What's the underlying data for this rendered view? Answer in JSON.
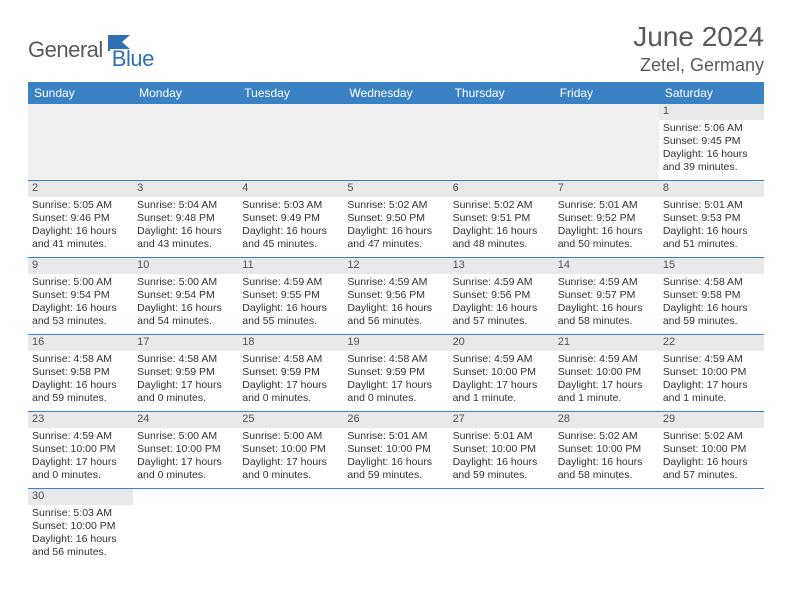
{
  "brand": {
    "part1": "General",
    "part2": "Blue"
  },
  "title": "June 2024",
  "location": "Zetel, Germany",
  "colors": {
    "header_bg": "#3b82c4",
    "header_text": "#ffffff",
    "brand_gray": "#5a5a5a",
    "brand_blue": "#2f6fb3",
    "cell_border": "#3b82c4",
    "daynum_bg": "#e9e9e9",
    "blank_bg": "#f0f0f0"
  },
  "weekdays": [
    "Sunday",
    "Monday",
    "Tuesday",
    "Wednesday",
    "Thursday",
    "Friday",
    "Saturday"
  ],
  "weeks": [
    [
      {
        "blank": true
      },
      {
        "blank": true
      },
      {
        "blank": true
      },
      {
        "blank": true
      },
      {
        "blank": true
      },
      {
        "blank": true
      },
      {
        "day": "1",
        "sunrise": "Sunrise: 5:06 AM",
        "sunset": "Sunset: 9:45 PM",
        "day1": "Daylight: 16 hours",
        "day2": "and 39 minutes."
      }
    ],
    [
      {
        "day": "2",
        "sunrise": "Sunrise: 5:05 AM",
        "sunset": "Sunset: 9:46 PM",
        "day1": "Daylight: 16 hours",
        "day2": "and 41 minutes."
      },
      {
        "day": "3",
        "sunrise": "Sunrise: 5:04 AM",
        "sunset": "Sunset: 9:48 PM",
        "day1": "Daylight: 16 hours",
        "day2": "and 43 minutes."
      },
      {
        "day": "4",
        "sunrise": "Sunrise: 5:03 AM",
        "sunset": "Sunset: 9:49 PM",
        "day1": "Daylight: 16 hours",
        "day2": "and 45 minutes."
      },
      {
        "day": "5",
        "sunrise": "Sunrise: 5:02 AM",
        "sunset": "Sunset: 9:50 PM",
        "day1": "Daylight: 16 hours",
        "day2": "and 47 minutes."
      },
      {
        "day": "6",
        "sunrise": "Sunrise: 5:02 AM",
        "sunset": "Sunset: 9:51 PM",
        "day1": "Daylight: 16 hours",
        "day2": "and 48 minutes."
      },
      {
        "day": "7",
        "sunrise": "Sunrise: 5:01 AM",
        "sunset": "Sunset: 9:52 PM",
        "day1": "Daylight: 16 hours",
        "day2": "and 50 minutes."
      },
      {
        "day": "8",
        "sunrise": "Sunrise: 5:01 AM",
        "sunset": "Sunset: 9:53 PM",
        "day1": "Daylight: 16 hours",
        "day2": "and 51 minutes."
      }
    ],
    [
      {
        "day": "9",
        "sunrise": "Sunrise: 5:00 AM",
        "sunset": "Sunset: 9:54 PM",
        "day1": "Daylight: 16 hours",
        "day2": "and 53 minutes."
      },
      {
        "day": "10",
        "sunrise": "Sunrise: 5:00 AM",
        "sunset": "Sunset: 9:54 PM",
        "day1": "Daylight: 16 hours",
        "day2": "and 54 minutes."
      },
      {
        "day": "11",
        "sunrise": "Sunrise: 4:59 AM",
        "sunset": "Sunset: 9:55 PM",
        "day1": "Daylight: 16 hours",
        "day2": "and 55 minutes."
      },
      {
        "day": "12",
        "sunrise": "Sunrise: 4:59 AM",
        "sunset": "Sunset: 9:56 PM",
        "day1": "Daylight: 16 hours",
        "day2": "and 56 minutes."
      },
      {
        "day": "13",
        "sunrise": "Sunrise: 4:59 AM",
        "sunset": "Sunset: 9:56 PM",
        "day1": "Daylight: 16 hours",
        "day2": "and 57 minutes."
      },
      {
        "day": "14",
        "sunrise": "Sunrise: 4:59 AM",
        "sunset": "Sunset: 9:57 PM",
        "day1": "Daylight: 16 hours",
        "day2": "and 58 minutes."
      },
      {
        "day": "15",
        "sunrise": "Sunrise: 4:58 AM",
        "sunset": "Sunset: 9:58 PM",
        "day1": "Daylight: 16 hours",
        "day2": "and 59 minutes."
      }
    ],
    [
      {
        "day": "16",
        "sunrise": "Sunrise: 4:58 AM",
        "sunset": "Sunset: 9:58 PM",
        "day1": "Daylight: 16 hours",
        "day2": "and 59 minutes."
      },
      {
        "day": "17",
        "sunrise": "Sunrise: 4:58 AM",
        "sunset": "Sunset: 9:59 PM",
        "day1": "Daylight: 17 hours",
        "day2": "and 0 minutes."
      },
      {
        "day": "18",
        "sunrise": "Sunrise: 4:58 AM",
        "sunset": "Sunset: 9:59 PM",
        "day1": "Daylight: 17 hours",
        "day2": "and 0 minutes."
      },
      {
        "day": "19",
        "sunrise": "Sunrise: 4:58 AM",
        "sunset": "Sunset: 9:59 PM",
        "day1": "Daylight: 17 hours",
        "day2": "and 0 minutes."
      },
      {
        "day": "20",
        "sunrise": "Sunrise: 4:59 AM",
        "sunset": "Sunset: 10:00 PM",
        "day1": "Daylight: 17 hours",
        "day2": "and 1 minute."
      },
      {
        "day": "21",
        "sunrise": "Sunrise: 4:59 AM",
        "sunset": "Sunset: 10:00 PM",
        "day1": "Daylight: 17 hours",
        "day2": "and 1 minute."
      },
      {
        "day": "22",
        "sunrise": "Sunrise: 4:59 AM",
        "sunset": "Sunset: 10:00 PM",
        "day1": "Daylight: 17 hours",
        "day2": "and 1 minute."
      }
    ],
    [
      {
        "day": "23",
        "sunrise": "Sunrise: 4:59 AM",
        "sunset": "Sunset: 10:00 PM",
        "day1": "Daylight: 17 hours",
        "day2": "and 0 minutes."
      },
      {
        "day": "24",
        "sunrise": "Sunrise: 5:00 AM",
        "sunset": "Sunset: 10:00 PM",
        "day1": "Daylight: 17 hours",
        "day2": "and 0 minutes."
      },
      {
        "day": "25",
        "sunrise": "Sunrise: 5:00 AM",
        "sunset": "Sunset: 10:00 PM",
        "day1": "Daylight: 17 hours",
        "day2": "and 0 minutes."
      },
      {
        "day": "26",
        "sunrise": "Sunrise: 5:01 AM",
        "sunset": "Sunset: 10:00 PM",
        "day1": "Daylight: 16 hours",
        "day2": "and 59 minutes."
      },
      {
        "day": "27",
        "sunrise": "Sunrise: 5:01 AM",
        "sunset": "Sunset: 10:00 PM",
        "day1": "Daylight: 16 hours",
        "day2": "and 59 minutes."
      },
      {
        "day": "28",
        "sunrise": "Sunrise: 5:02 AM",
        "sunset": "Sunset: 10:00 PM",
        "day1": "Daylight: 16 hours",
        "day2": "and 58 minutes."
      },
      {
        "day": "29",
        "sunrise": "Sunrise: 5:02 AM",
        "sunset": "Sunset: 10:00 PM",
        "day1": "Daylight: 16 hours",
        "day2": "and 57 minutes."
      }
    ],
    [
      {
        "day": "30",
        "sunrise": "Sunrise: 5:03 AM",
        "sunset": "Sunset: 10:00 PM",
        "day1": "Daylight: 16 hours",
        "day2": "and 56 minutes."
      },
      {
        "blank": true,
        "noborder": true
      },
      {
        "blank": true,
        "noborder": true
      },
      {
        "blank": true,
        "noborder": true
      },
      {
        "blank": true,
        "noborder": true
      },
      {
        "blank": true,
        "noborder": true
      },
      {
        "blank": true,
        "noborder": true
      }
    ]
  ]
}
